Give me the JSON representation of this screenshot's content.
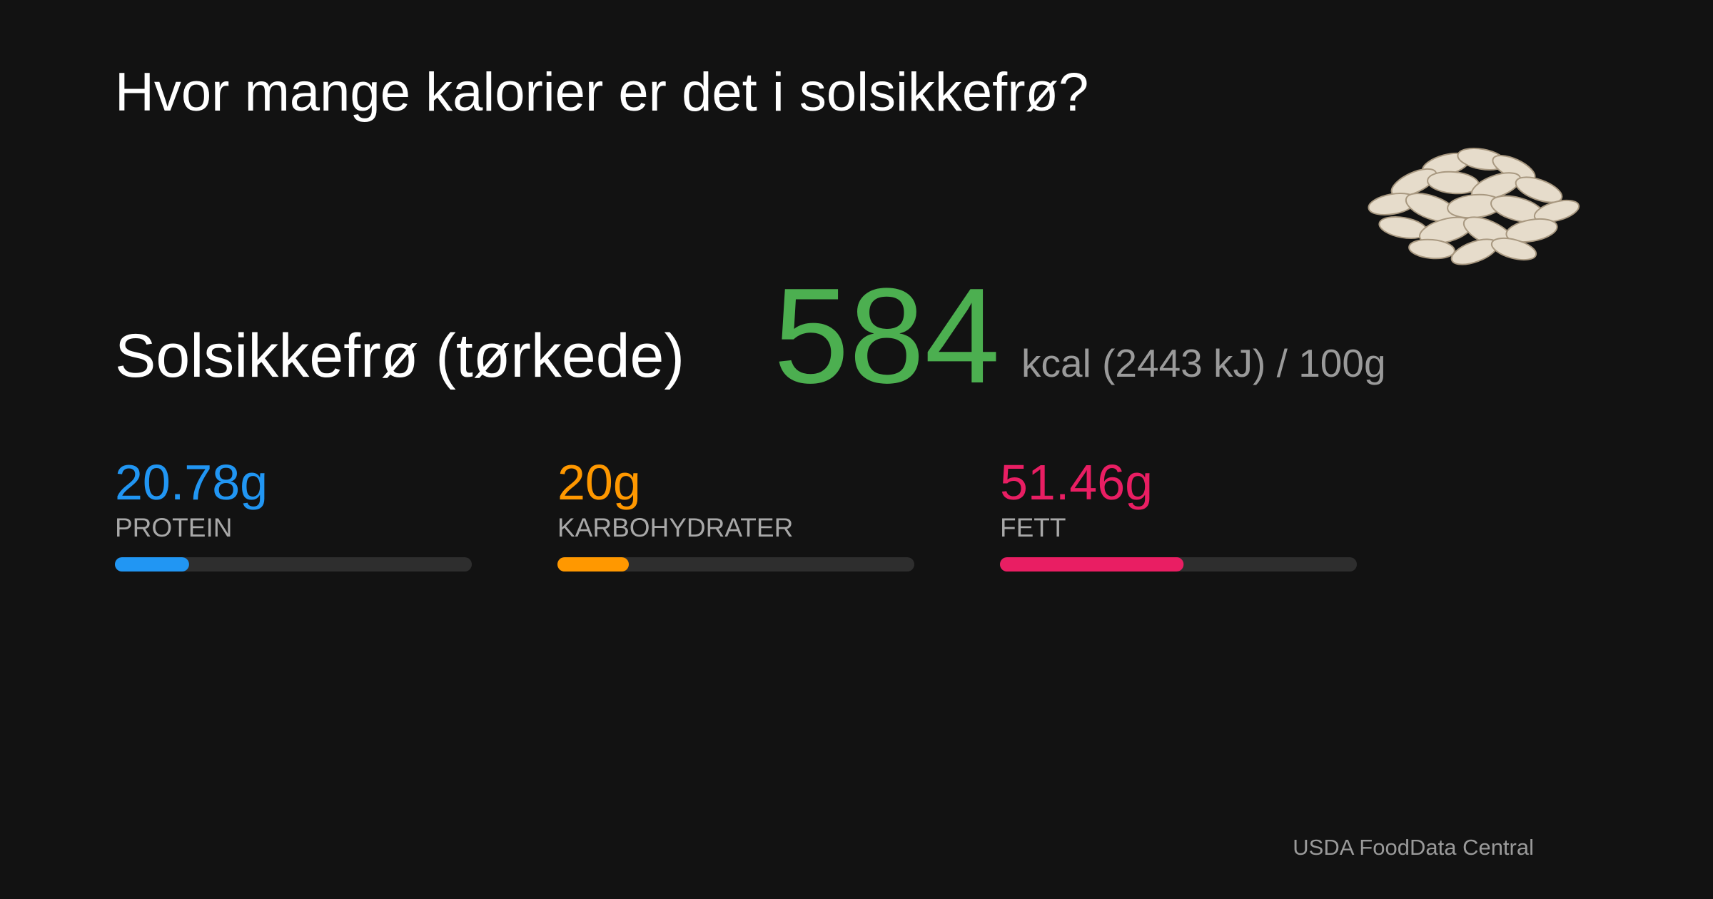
{
  "header": {
    "title": "Hvor mange kalorier er det i solsikkefrø?"
  },
  "food": {
    "name": "Solsikkefrø (tørkede)",
    "calories": 584,
    "calories_color": "#4caf50",
    "unit": "kcal (2443 kJ) / 100g"
  },
  "macros": [
    {
      "value": 20.78,
      "label": "20.78g",
      "name": "PROTEIN",
      "color": "#2196f3",
      "xlim": [
        0,
        100
      ]
    },
    {
      "value": 20,
      "label": "20g",
      "name": "KARBOHYDRATER",
      "color": "#ff9800",
      "xlim": [
        0,
        100
      ]
    },
    {
      "value": 51.46,
      "label": "51.46g",
      "name": "FETT",
      "color": "#e91e63",
      "xlim": [
        0,
        100
      ]
    }
  ],
  "footer": {
    "source": "USDA FoodData Central"
  }
}
